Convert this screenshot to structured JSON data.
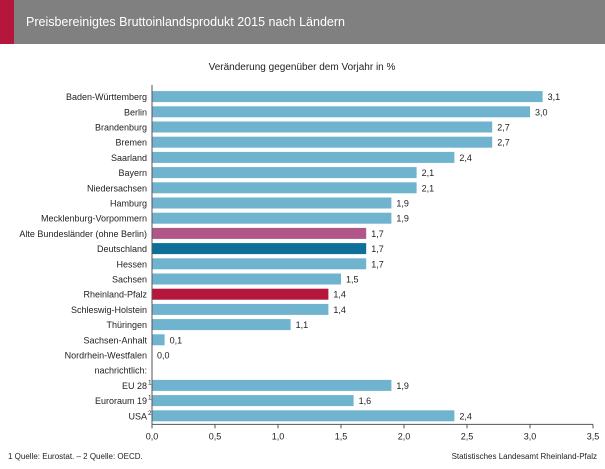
{
  "header": {
    "title": "Preisbereinigtes Bruttoinlandsprodukt 2015 nach Ländern",
    "accent_color": "#b5163b",
    "bar_color": "#808080"
  },
  "footer": {
    "source_note": "1 Quelle: Eurostat. – 2 Quelle: OECD.",
    "publisher": "Statistisches Landesamt Rheinland-Pfalz"
  },
  "chart_data": {
    "type": "bar",
    "orientation": "horizontal",
    "title": "Veränderung gegenüber dem Vorjahr in %",
    "xlim": [
      0,
      3.5
    ],
    "xticks": [
      "0,0",
      "0,5",
      "1,0",
      "1,5",
      "2,0",
      "2,5",
      "3,0",
      "3,5"
    ],
    "xtick_values": [
      0,
      0.5,
      1.0,
      1.5,
      2.0,
      2.5,
      3.0,
      3.5
    ],
    "grid": false,
    "legend": "none",
    "colors": {
      "default": "#6fb3cf",
      "alte": "#b05787",
      "deutschland": "#0e6f98",
      "rlp": "#b5163b"
    },
    "categories": [
      "Baden-Württemberg",
      "Berlin",
      "Brandenburg",
      "Bremen",
      "Saarland",
      "Bayern",
      "Niedersachsen",
      "Hamburg",
      "Mecklenburg-Vorpommern",
      "Alte Bundesländer (ohne Berlin)",
      "Deutschland",
      "Hessen",
      "Sachsen",
      "Rheinland-Pfalz",
      "Schleswig-Holstein",
      "Thüringen",
      "Sachsen-Anhalt",
      "Nordrhein-Westfalen",
      "nachrichtlich:",
      "EU 28",
      "Euroraum 19",
      "USA"
    ],
    "superscripts": [
      "",
      "",
      "",
      "",
      "",
      "",
      "",
      "",
      "",
      "",
      "",
      "",
      "",
      "",
      "",
      "",
      "",
      "",
      "",
      "1",
      "1",
      "2"
    ],
    "values": [
      3.1,
      3.0,
      2.7,
      2.7,
      2.4,
      2.1,
      2.1,
      1.9,
      1.9,
      1.7,
      1.7,
      1.7,
      1.5,
      1.4,
      1.4,
      1.1,
      0.1,
      0.0,
      null,
      1.9,
      1.6,
      2.4
    ],
    "value_labels": [
      "3,1",
      "3,0",
      "2,7",
      "2,7",
      "2,4",
      "2,1",
      "2,1",
      "1,9",
      "1,9",
      "1,7",
      "1,7",
      "1,7",
      "1,5",
      "1,4",
      "1,4",
      "1,1",
      "0,1",
      "0,0",
      "",
      "1,9",
      "1,6",
      "2,4"
    ],
    "bar_color_keys": [
      "default",
      "default",
      "default",
      "default",
      "default",
      "default",
      "default",
      "default",
      "default",
      "alte",
      "deutschland",
      "default",
      "default",
      "rlp",
      "default",
      "default",
      "default",
      "default",
      "default",
      "default",
      "default",
      "default"
    ]
  }
}
